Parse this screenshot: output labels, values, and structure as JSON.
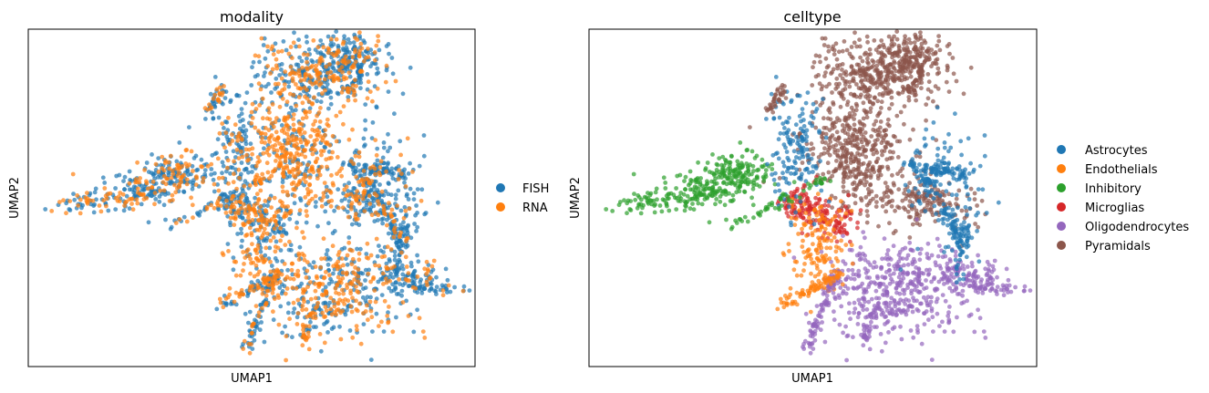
{
  "figure": {
    "left_panel": {
      "title": "modality",
      "xlabel": "UMAP1",
      "ylabel": "UMAP2",
      "legend": [
        {
          "label": "FISH",
          "color": "#1f77b4"
        },
        {
          "label": "RNA",
          "color": "#ff7f0e"
        }
      ]
    },
    "right_panel": {
      "title": "celltype",
      "xlabel": "UMAP1",
      "ylabel": "UMAP2",
      "legend": [
        {
          "label": "Astrocytes",
          "color": "#1f77b4"
        },
        {
          "label": "Endothelials",
          "color": "#ff7f0e"
        },
        {
          "label": "Inhibitory",
          "color": "#2ca02c"
        },
        {
          "label": "Microglias",
          "color": "#d62728"
        },
        {
          "label": "Oligodendrocytes",
          "color": "#9467bd"
        },
        {
          "label": "Pyramidals",
          "color": "#8c564b"
        }
      ]
    }
  },
  "chart_data": [
    {
      "type": "scatter",
      "title": "modality",
      "xlabel": "UMAP1",
      "ylabel": "UMAP2",
      "grid": false,
      "ticks": false,
      "legend_position": "right",
      "series": [
        {
          "name": "FISH",
          "color": "#1f77b4"
        },
        {
          "name": "RNA",
          "color": "#ff7f0e"
        }
      ]
    },
    {
      "type": "scatter",
      "title": "celltype",
      "xlabel": "UMAP1",
      "ylabel": "UMAP2",
      "grid": false,
      "ticks": false,
      "legend_position": "right",
      "series": [
        {
          "name": "Astrocytes",
          "color": "#1f77b4"
        },
        {
          "name": "Endothelials",
          "color": "#ff7f0e"
        },
        {
          "name": "Inhibitory",
          "color": "#2ca02c"
        },
        {
          "name": "Microglias",
          "color": "#d62728"
        },
        {
          "name": "Oligodendrocytes",
          "color": "#9467bd"
        },
        {
          "name": "Pyramidals",
          "color": "#8c564b"
        }
      ]
    }
  ]
}
